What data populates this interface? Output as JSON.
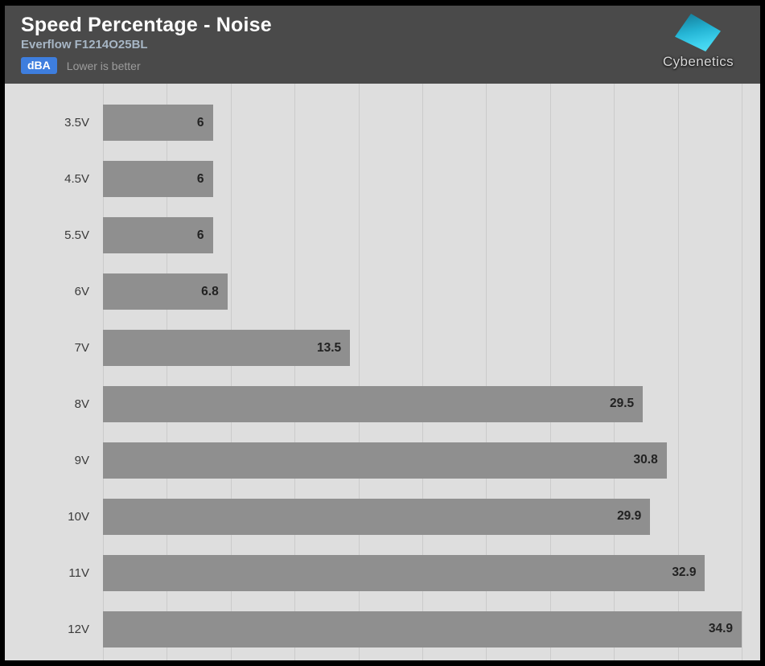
{
  "header": {
    "title": "Speed Percentage - Noise",
    "subtitle": "Everflow F1214O25BL",
    "unit_badge": "dBA",
    "note": "Lower is better",
    "brand": "Cybenetics"
  },
  "chart_data": {
    "type": "bar",
    "orientation": "horizontal",
    "title": "Speed Percentage - Noise",
    "subtitle": "Everflow F1214O25BL",
    "unit": "dBA",
    "lower_is_better": true,
    "categories": [
      "3.5V",
      "4.5V",
      "5.5V",
      "6V",
      "7V",
      "8V",
      "9V",
      "10V",
      "11V",
      "12V"
    ],
    "values": [
      6,
      6,
      6,
      6.8,
      13.5,
      29.5,
      30.8,
      29.9,
      32.9,
      34.9
    ],
    "xlim": [
      0,
      34.9
    ],
    "gridline_count": 11,
    "grid": "vertical",
    "legend": "none",
    "value_labels": "inside-end"
  },
  "colors": {
    "header_bg": "#4a4a4a",
    "chart_bg": "#dedede",
    "bar": "#8f8f8f",
    "gridline": "#cbcbcb",
    "badge_bg": "#3e7ede",
    "subtitle": "#a7b6c5",
    "note": "#9c9c9c",
    "brand_cyan": "#2fc7e6"
  }
}
